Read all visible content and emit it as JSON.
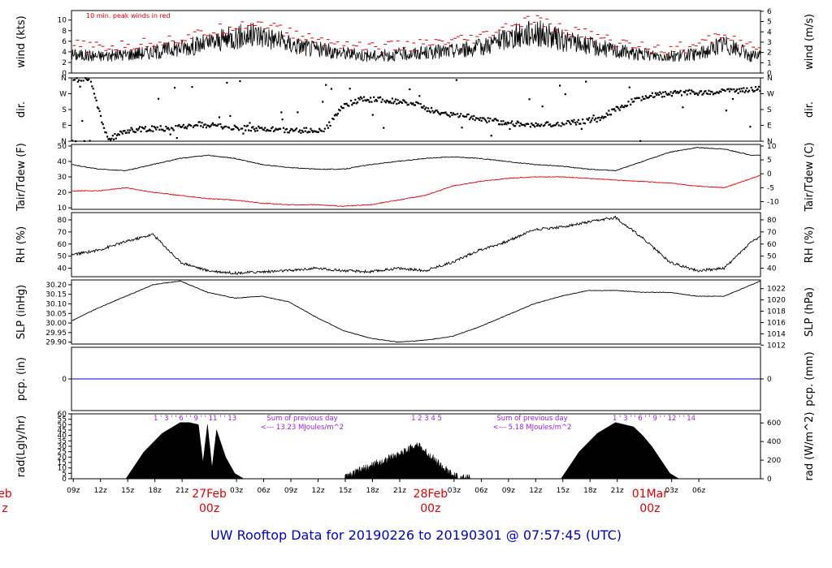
{
  "chart_data": {
    "type": "line",
    "title": "UW Rooftop Data for 20190226  to  20190301 @ 07:57:45  (UTC)",
    "x_time_labels": [
      "09z",
      "12z",
      "15z",
      "18z",
      "21z",
      "03z",
      "06z",
      "09z",
      "12z",
      "15z",
      "18z",
      "21z",
      "03z",
      "06z",
      "09z",
      "12z",
      "15z",
      "18z",
      "21z",
      "03z",
      "06z"
    ],
    "date_labels": [
      {
        "day": "eb",
        "hour": "z"
      },
      {
        "day": "27Feb",
        "hour": "00z"
      },
      {
        "day": "28Feb",
        "hour": "00z"
      },
      {
        "day": "01Mar",
        "hour": "00z"
      }
    ],
    "panels": [
      {
        "id": "wind",
        "ylabel_left": "wind (kts)",
        "ylabel_right": "wind (m/s)",
        "left_ticks": [
          0,
          2,
          4,
          6,
          8,
          10
        ],
        "right_ticks": [
          0,
          1,
          2,
          3,
          4,
          5,
          6
        ],
        "ylim": [
          0,
          11.8
        ],
        "annotation": "10 min. peak winds in red",
        "series": [
          {
            "name": "wind",
            "color": "#000000",
            "x": [
              0,
              3,
              6,
              9,
              12,
              15,
              18,
              21,
              24,
              27,
              30,
              33,
              36,
              39,
              42,
              45,
              48,
              51,
              54,
              57,
              60,
              63,
              66,
              69,
              72,
              75
            ],
            "values": [
              3.5,
              3.2,
              3.5,
              4.0,
              4.8,
              5.5,
              6.8,
              7.2,
              5.5,
              4.5,
              3.8,
              3.2,
              3.5,
              3.8,
              4.2,
              4.8,
              6.5,
              7.8,
              6.2,
              5.2,
              4.2,
              3.5,
              3.2,
              3.5,
              5.5,
              3.2
            ]
          },
          {
            "name": "peak",
            "color": "#e00000",
            "x": [
              0,
              3,
              6,
              9,
              12,
              15,
              18,
              21,
              24,
              27,
              30,
              33,
              36,
              39,
              42,
              45,
              48,
              51,
              54,
              57,
              60,
              63,
              66,
              69,
              72,
              75
            ],
            "values": [
              5.2,
              4.8,
              5.0,
              5.8,
              6.5,
              7.5,
              9.0,
              9.5,
              7.5,
              6.2,
              5.5,
              4.8,
              5.0,
              5.3,
              5.8,
              6.5,
              8.5,
              10.0,
              8.2,
              7.2,
              5.8,
              5.0,
              4.6,
              5.0,
              7.5,
              4.6
            ]
          }
        ]
      },
      {
        "id": "dir",
        "ylabel_left": "dir.",
        "ylabel_right": "dir.",
        "left_ticks": [
          "N",
          "E",
          "S",
          "W",
          "N"
        ],
        "right_ticks": [
          "N",
          "E",
          "S",
          "W",
          "N"
        ],
        "ylim": [
          0,
          360
        ],
        "series": [
          {
            "name": "direction",
            "color": "#000000",
            "x": [
              0,
              2,
              4,
              6,
              8,
              10,
              12,
              14,
              16,
              18,
              20,
              22,
              24,
              26,
              28,
              30,
              32,
              34,
              36,
              38,
              40,
              42,
              44,
              46,
              48,
              50,
              52,
              54,
              56,
              58,
              60,
              62,
              64,
              66,
              68,
              70,
              72,
              74,
              76
            ],
            "values": [
              350,
              355,
              5,
              60,
              70,
              72,
              80,
              95,
              88,
              80,
              72,
              66,
              60,
              62,
              65,
              200,
              240,
              236,
              225,
              210,
              170,
              150,
              135,
              120,
              105,
              95,
              92,
              100,
              110,
              125,
              180,
              230,
              260,
              270,
              280,
              275,
              285,
              290,
              300
            ]
          }
        ]
      },
      {
        "id": "temp",
        "ylabel_left": "Tair/Tdew (F)",
        "ylabel_right": "Tair/Tdew (C)",
        "left_ticks": [
          10,
          20,
          30,
          40,
          50
        ],
        "right_ticks": [
          -10,
          -5,
          0,
          5,
          10
        ],
        "ylim": [
          9,
          51
        ],
        "series": [
          {
            "name": "Tair",
            "color": "#000000",
            "x": [
              0,
              3,
              6,
              9,
              12,
              15,
              18,
              21,
              24,
              27,
              30,
              33,
              36,
              39,
              42,
              45,
              48,
              51,
              54,
              57,
              60,
              63,
              66,
              69,
              72,
              75,
              76
            ],
            "values": [
              38,
              35,
              34,
              38,
              42,
              44,
              42,
              38,
              36,
              35,
              35,
              38,
              40,
              42,
              43,
              42,
              40,
              38,
              37,
              35,
              34,
              40,
              46,
              49,
              48,
              44,
              44
            ]
          },
          {
            "name": "Tdew",
            "color": "#e00000",
            "x": [
              0,
              3,
              6,
              9,
              12,
              15,
              18,
              21,
              24,
              27,
              30,
              33,
              36,
              39,
              42,
              45,
              48,
              51,
              54,
              57,
              60,
              63,
              66,
              69,
              72,
              75,
              76
            ],
            "values": [
              21,
              21,
              23,
              20,
              18,
              16,
              15,
              13,
              12,
              12,
              11,
              12,
              15,
              18,
              24,
              27,
              29,
              30,
              30,
              29,
              28,
              27,
              26,
              24,
              23,
              29,
              31
            ]
          }
        ]
      },
      {
        "id": "rh",
        "ylabel_left": "RH (%)",
        "ylabel_right": "RH (%)",
        "left_ticks": [
          40,
          50,
          60,
          70,
          80
        ],
        "right_ticks": [
          40,
          50,
          60,
          70,
          80
        ],
        "ylim": [
          33,
          86
        ],
        "series": [
          {
            "name": "RH",
            "color": "#000000",
            "x": [
              0,
              3,
              6,
              9,
              12,
              15,
              18,
              21,
              24,
              27,
              30,
              33,
              36,
              39,
              42,
              45,
              48,
              51,
              54,
              57,
              60,
              63,
              66,
              69,
              72,
              75,
              76
            ],
            "values": [
              51,
              55,
              62,
              68,
              45,
              38,
              36,
              37,
              38,
              40,
              38,
              37,
              40,
              38,
              45,
              55,
              62,
              72,
              74,
              78,
              82,
              65,
              45,
              38,
              40,
              62,
              66
            ]
          }
        ]
      },
      {
        "id": "slp",
        "ylabel_left": "SLP (inHg)",
        "ylabel_right": "SLP (hPa)",
        "left_ticks": [
          29.9,
          29.95,
          30.0,
          30.05,
          30.1,
          30.15,
          30.2
        ],
        "right_ticks": [
          1012,
          1014,
          1016,
          1018,
          1020,
          1022
        ],
        "ylim": [
          29.89,
          30.225
        ],
        "series": [
          {
            "name": "SLP",
            "color": "#000000",
            "x": [
              0,
              3,
              6,
              9,
              12,
              15,
              18,
              21,
              24,
              27,
              30,
              33,
              36,
              39,
              42,
              45,
              48,
              51,
              54,
              57,
              60,
              63,
              66,
              69,
              72,
              75,
              76
            ],
            "values": [
              30.01,
              30.08,
              30.14,
              30.2,
              30.22,
              30.16,
              30.13,
              30.14,
              30.11,
              30.03,
              29.96,
              29.92,
              29.9,
              29.91,
              29.93,
              29.98,
              30.04,
              30.1,
              30.14,
              30.17,
              30.17,
              30.16,
              30.16,
              30.14,
              30.14,
              30.2,
              30.22
            ]
          }
        ]
      },
      {
        "id": "pcp",
        "ylabel_left": "pcp. (in)",
        "ylabel_right": "pcp. (mm)",
        "left_ticks": [
          0
        ],
        "right_ticks": [
          0
        ],
        "ylim": [
          -1,
          1
        ],
        "series": [
          {
            "name": "precip",
            "color": "#0000cc",
            "x": [
              0,
              76
            ],
            "values": [
              0,
              0
            ]
          }
        ]
      },
      {
        "id": "rad",
        "ylabel_left": "rad(Lgly/hr)",
        "ylabel_right": "rad (W/m^2)",
        "left_ticks": [
          0,
          5,
          10,
          15,
          20,
          25,
          30,
          35,
          40,
          45,
          50,
          55,
          60
        ],
        "right_ticks": [
          0,
          200,
          400,
          600
        ],
        "ylim": [
          0,
          60
        ],
        "hour_marks": [
          {
            "text": "1 ' 3 ' ' 6 ' ' 9 ' ' 11 ' ' 13"
          },
          {
            "text": "1   2   3   4      5"
          },
          {
            "text": "1 ' 3 ' ' 6 ' ' 9 ' ' 12 ' ' 14"
          }
        ],
        "annotations": [
          {
            "line1": "Sum of previous day",
            "line2": "<--- 13.23 MJoules/m^2"
          },
          {
            "line1": "Sum of previous day",
            "line2": "<--- 5.18 MJoules/m^2"
          }
        ],
        "series": [
          {
            "name": "rad",
            "color": "#000000",
            "x": [
              6,
              8,
              10,
              12,
              13,
              14,
              14.5,
              15,
              15.5,
              16,
              17,
              18,
              19,
              30,
              32,
              34,
              36,
              37,
              38,
              39,
              40,
              41,
              42,
              43,
              44,
              54,
              56,
              58,
              60,
              62,
              63,
              64,
              66,
              67
            ],
            "values": [
              0,
              25,
              42,
              52,
              52,
              50,
              15,
              50,
              10,
              45,
              20,
              5,
              0,
              0,
              8,
              15,
              22,
              26,
              32,
              25,
              18,
              10,
              3,
              0,
              0,
              0,
              25,
              42,
              52,
              48,
              40,
              30,
              5,
              0
            ]
          }
        ]
      }
    ]
  }
}
